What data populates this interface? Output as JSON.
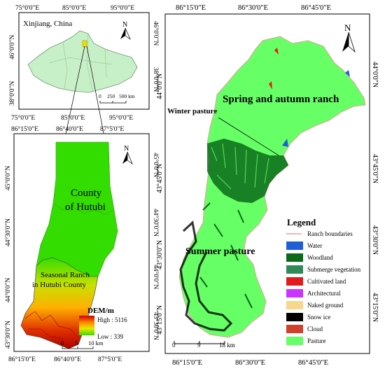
{
  "inset": {
    "title": "Xinjiang, China",
    "top_ticks": [
      "75°0'0\"E",
      "85°0'0\"E",
      "95°0'0\"E"
    ],
    "bottom_ticks": [
      "75°0'0\"E",
      "85°0'0\"E",
      "95°0'0\"E"
    ],
    "left_ticks": [
      "46°0'0\"N",
      "38°0'0\"N"
    ],
    "right_ticks": [
      "46°0'0\"N",
      "38°0'0\"N"
    ],
    "scalebar": [
      "0",
      "250",
      "500 km"
    ],
    "north": "N"
  },
  "county": {
    "top_ticks": [
      "86°15'0\"E",
      "86°40'0\"E",
      "87°5'0\"E"
    ],
    "bottom_ticks": [
      "86°15'0\"E",
      "86°40'0\"E",
      "87°5'0\"E"
    ],
    "left_ticks": [
      "45°0'0\"N",
      "44°30'0\"N",
      "44°0'0\"N",
      "43°30'0\"N"
    ],
    "right_ticks": [
      "45°0'0\"N",
      "44°30'0\"N",
      "44°0'0\"N",
      "43°30'0\"N"
    ],
    "county_label_1": "County",
    "county_label_2": "of Hutubi",
    "ranch_label_1": "Seasonal Ranch",
    "ranch_label_2": "in Hutubi County",
    "dem_title": "DEM/m",
    "dem_high": "High : 5116",
    "dem_low": "Low : 339",
    "scalebar": [
      "0",
      "5",
      "10 km"
    ],
    "north": "N"
  },
  "ranch": {
    "top_ticks": [
      "86°15'0\"E",
      "86°30'0\"E",
      "86°45'0\"E"
    ],
    "bottom_ticks": [
      "86°15'0\"E",
      "86°30'0\"E",
      "86°45'0\"E"
    ],
    "left_ticks": [
      "44°0'0\"N",
      "43°45'0\"N",
      "43°30'0\"N",
      "43°15'0\"N"
    ],
    "right_ticks": [
      "44°0'0\"N",
      "43°45'0\"N",
      "43°30'0\"N",
      "43°15'0\"N"
    ],
    "label_spring": "Spring and autumn ranch",
    "label_winter": "Winter pasture",
    "label_summer": "Summer pasture",
    "scalebar": [
      "0",
      "9",
      "18 km"
    ],
    "north": "N"
  },
  "legend": {
    "title": "Legend",
    "items": [
      {
        "label": "Ranch boundaries",
        "color": "#e8a0a0"
      },
      {
        "label": "Water",
        "color": "#1f5fd6"
      },
      {
        "label": "Woodland",
        "color": "#0a6a1a"
      },
      {
        "label": "Submerge vegetation",
        "color": "#2e8b57"
      },
      {
        "label": "Cultivated land",
        "color": "#e31a1c"
      },
      {
        "label": "Architectural",
        "color": "#cc33ff"
      },
      {
        "label": "Naked ground",
        "color": "#f5d78e"
      },
      {
        "label": "Snow ice",
        "color": "#000000"
      },
      {
        "label": "Cloud",
        "color": "#d0402a"
      },
      {
        "label": "Pasture",
        "color": "#66ff66"
      }
    ]
  },
  "colors": {
    "pasture": "#66ff66",
    "county_fill": "#33dd00",
    "woodland": "#0a6a1a",
    "inset_fill": "#c8f0c8"
  }
}
